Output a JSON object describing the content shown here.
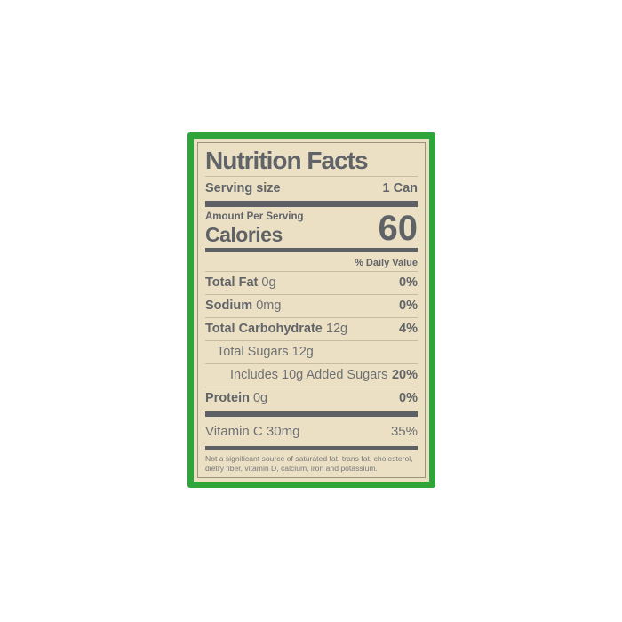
{
  "label": {
    "title": "Nutrition Facts",
    "serving": {
      "label": "Serving size",
      "value": "1 Can"
    },
    "amount_per_serving": "Amount Per Serving",
    "calories_label": "Calories",
    "calories_value": "60",
    "daily_value_header": "% Daily Value",
    "rows": [
      {
        "name": "Total Fat",
        "amount": "0g",
        "dv": "0%"
      },
      {
        "name": "Sodium",
        "amount": "0mg",
        "dv": "0%"
      },
      {
        "name": "Total Carbohydrate",
        "amount": "12g",
        "dv": "4%"
      },
      {
        "name": "Total Sugars",
        "amount": "12g",
        "dv": ""
      },
      {
        "name": "Includes 10g Added Sugars",
        "amount": "",
        "dv": "20%"
      },
      {
        "name": "Protein",
        "amount": "0g",
        "dv": "0%"
      }
    ],
    "vitamin_row": {
      "name": "Vitamin C 30mg",
      "dv": "35%"
    },
    "footnote": "Not a significant source of saturated fat, trans fat, cholesterol, dietry fiber, vitamin D, calcium, iron and potassium."
  },
  "colors": {
    "border_green": "#2ea43b",
    "background_cream": "#ece0c4",
    "bar_gray": "#5d6167",
    "text_gray": "#63666b",
    "separator": "#c6bca2"
  }
}
